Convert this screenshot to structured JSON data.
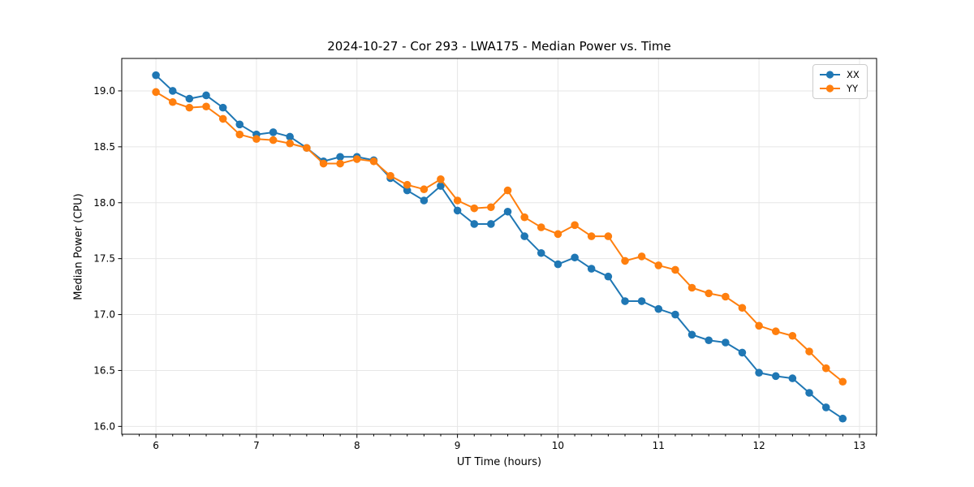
{
  "chart_data": {
    "type": "line",
    "title": "2024-10-27 - Cor 293 - LWA175 - Median Power vs. Time",
    "xlabel": "UT Time (hours)",
    "ylabel": "Median Power (CPU)",
    "xlim": [
      5.66,
      13.17
    ],
    "ylim": [
      15.93,
      19.29
    ],
    "xticks": [
      6,
      7,
      8,
      9,
      10,
      11,
      12,
      13
    ],
    "yticks": [
      16.0,
      16.5,
      17.0,
      17.5,
      18.0,
      18.5,
      19.0
    ],
    "x_minor_step": 0.16667,
    "grid": true,
    "legend_position": "upper right",
    "grid_color": "#dcdcdc",
    "x": [
      6,
      6.167,
      6.333,
      6.5,
      6.667,
      6.833,
      7,
      7.167,
      7.333,
      7.5,
      7.667,
      7.833,
      8,
      8.167,
      8.333,
      8.5,
      8.667,
      8.833,
      9,
      9.167,
      9.333,
      9.5,
      9.667,
      9.833,
      10,
      10.167,
      10.333,
      10.5,
      10.667,
      10.833,
      11,
      11.167,
      11.333,
      11.5,
      11.667,
      11.833,
      12,
      12.167,
      12.333,
      12.5,
      12.667,
      12.833
    ],
    "series": [
      {
        "name": "XX",
        "color": "#1f77b4",
        "values": [
          19.14,
          19.0,
          18.93,
          18.96,
          18.85,
          18.7,
          18.61,
          18.63,
          18.59,
          18.49,
          18.37,
          18.41,
          18.41,
          18.38,
          18.22,
          18.11,
          18.02,
          18.15,
          17.93,
          17.81,
          17.81,
          17.92,
          17.7,
          17.55,
          17.45,
          17.51,
          17.41,
          17.34,
          17.12,
          17.12,
          17.05,
          17.0,
          16.82,
          16.77,
          16.75,
          16.66,
          16.48,
          16.45,
          16.43,
          16.3,
          16.17,
          16.07
        ]
      },
      {
        "name": "YY",
        "color": "#ff7f0e",
        "values": [
          18.99,
          18.9,
          18.85,
          18.86,
          18.75,
          18.61,
          18.57,
          18.56,
          18.53,
          18.49,
          18.35,
          18.35,
          18.39,
          18.37,
          18.24,
          18.16,
          18.12,
          18.21,
          18.02,
          17.95,
          17.96,
          18.11,
          17.87,
          17.78,
          17.72,
          17.8,
          17.7,
          17.7,
          17.48,
          17.52,
          17.44,
          17.4,
          17.24,
          17.19,
          17.16,
          17.06,
          16.9,
          16.85,
          16.81,
          16.67,
          16.52,
          16.4
        ]
      }
    ]
  }
}
